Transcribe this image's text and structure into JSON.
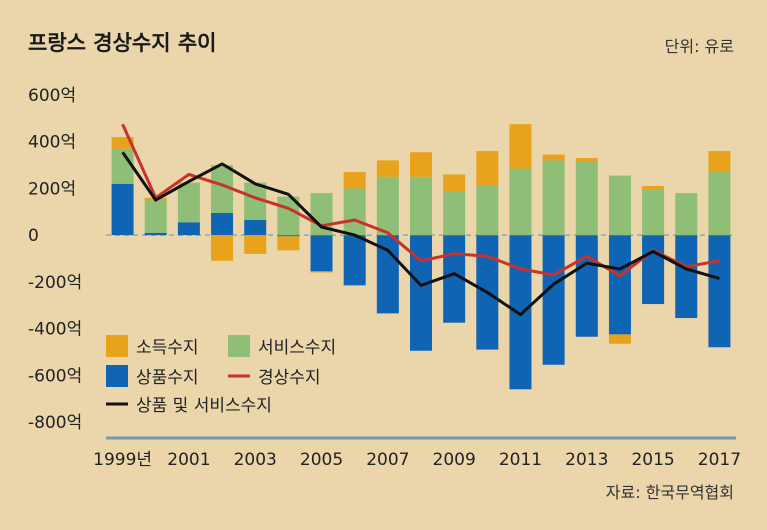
{
  "title": "프랑스 경상수지 추이",
  "unit": "단위: 유로",
  "source": "자료: 한국무역협회",
  "colors": {
    "background": "#ead6aa",
    "income": "#e8a21c",
    "services": "#8fbe76",
    "goods": "#0f64b4",
    "current_account": "#c8322a",
    "goods_and_services": "#111111",
    "axis": "#6d9bb0",
    "zero_line": "#8aa8b8"
  },
  "chart_data": {
    "type": "bar",
    "stacked": true,
    "ylim": [
      -800,
      600
    ],
    "y_ticks": [
      600,
      400,
      200,
      0,
      -200,
      -400,
      -600,
      -800
    ],
    "y_tick_labels": [
      "600억",
      "400억",
      "200억",
      "0",
      "-200억",
      "-400억",
      "-600억",
      "-800억"
    ],
    "categories": [
      "1999",
      "2000",
      "2001",
      "2002",
      "2003",
      "2004",
      "2005",
      "2006",
      "2007",
      "2008",
      "2009",
      "2010",
      "2011",
      "2012",
      "2013",
      "2014",
      "2015",
      "2016",
      "2017"
    ],
    "x_tick_labels": [
      "1999년",
      "",
      "2001",
      "",
      "2003",
      "",
      "2005",
      "",
      "2007",
      "",
      "2009",
      "",
      "2011",
      "",
      "2013",
      "",
      "2015",
      "",
      "2017"
    ],
    "series": [
      {
        "name": "소득수지",
        "kind": "bar",
        "color_key": "income",
        "values": [
          50,
          10,
          0,
          -110,
          -80,
          -60,
          -5,
          70,
          70,
          105,
          75,
          145,
          190,
          25,
          15,
          -40,
          15,
          0,
          90
        ]
      },
      {
        "name": "서비스수지",
        "kind": "bar",
        "color_key": "services",
        "values": [
          150,
          140,
          170,
          205,
          160,
          165,
          180,
          200,
          250,
          250,
          185,
          215,
          285,
          320,
          315,
          255,
          195,
          180,
          270
        ]
      },
      {
        "name": "상품수지",
        "kind": "bar",
        "color_key": "goods",
        "values": [
          220,
          10,
          55,
          95,
          65,
          -5,
          -155,
          -215,
          -335,
          -495,
          -375,
          -490,
          -660,
          -555,
          -435,
          -425,
          -295,
          -355,
          -480
        ]
      },
      {
        "name": "경상수지",
        "kind": "line",
        "color_key": "current_account",
        "values": [
          475,
          160,
          260,
          215,
          160,
          115,
          40,
          65,
          10,
          -110,
          -80,
          -90,
          -145,
          -170,
          -90,
          -175,
          -65,
          -135,
          -110
        ]
      },
      {
        "name": "상품 및 서비스수지",
        "kind": "line",
        "color_key": "goods_and_services",
        "values": [
          355,
          150,
          230,
          305,
          220,
          175,
          35,
          0,
          -65,
          -215,
          -165,
          -245,
          -340,
          -210,
          -120,
          -145,
          -70,
          -145,
          -185
        ]
      }
    ]
  }
}
